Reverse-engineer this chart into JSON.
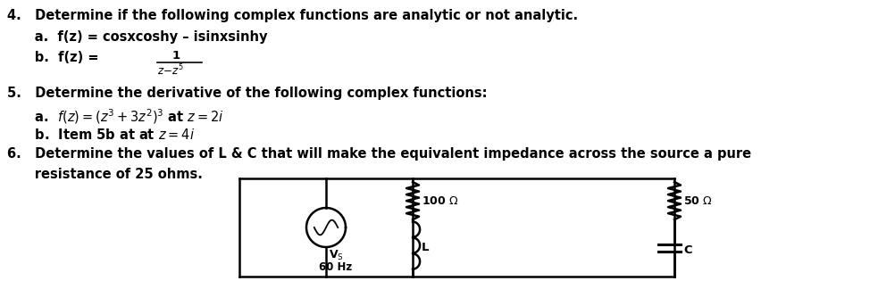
{
  "text_color": "#000000",
  "bg_color": "#ffffff",
  "line1": "4.   Determine if the following complex functions are analytic or not analytic.",
  "line2": "      a.  f(z) = cosxcoshy – isinxsinhy",
  "line3_pre": "      b.  f(z) = ",
  "line4": "5.   Determine the derivative of the following complex functions:",
  "line5": "      a.  f(z) = (z³ + 3z²)³ at z = 2i",
  "line6": "      b.  Item 5b at at z = 4i",
  "line7": "6.   Determine the values of L & C that will make the equivalent impedance across the source a pure",
  "line8": "      resistance of 25 ohms.",
  "font_size": 10.5,
  "font_family": "DejaVu Sans",
  "font_weight": "bold"
}
